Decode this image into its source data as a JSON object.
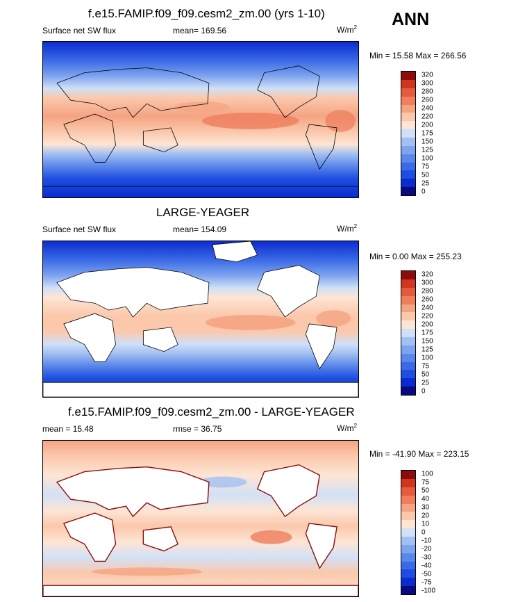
{
  "season": "ANN",
  "panels": [
    {
      "title": "f.e15.FAMIP.f09_f09.cesm2_zm.00 (yrs 1-10)",
      "left_label": "Surface net SW flux",
      "center_label": "mean= 169.56",
      "units": "W/m",
      "units_exp": "2",
      "minmax": "Min =  15.58 Max = 266.56",
      "colorbar_labels": [
        "0",
        "25",
        "50",
        "75",
        "100",
        "125",
        "150",
        "175",
        "200",
        "220",
        "240",
        "260",
        "280",
        "300",
        "320"
      ],
      "mask_land": false
    },
    {
      "title": "LARGE-YEAGER",
      "left_label": "Surface net SW flux",
      "center_label": "mean= 154.09",
      "units": "W/m",
      "units_exp": "2",
      "minmax": "Min =   0.00 Max = 255.23",
      "colorbar_labels": [
        "0",
        "25",
        "50",
        "75",
        "100",
        "125",
        "150",
        "175",
        "200",
        "220",
        "240",
        "260",
        "280",
        "300",
        "320"
      ],
      "mask_land": true
    },
    {
      "title": "f.e15.FAMIP.f09_f09.cesm2_zm.00 - LARGE-YEAGER",
      "left_label": "mean =  15.48",
      "center_label": "rmse =  36.75",
      "units": "W/m",
      "units_exp": "2",
      "minmax": "Min = -41.90 Max = 223.15",
      "colorbar_labels": [
        "-100",
        "-75",
        "-50",
        "-40",
        "-30",
        "-20",
        "-10",
        "0",
        "10",
        "20",
        "30",
        "40",
        "50",
        "75",
        "100"
      ],
      "mask_land": true
    }
  ],
  "colors": {
    "abs_scale": [
      "#0a0a80",
      "#0b2bd0",
      "#1e4de0",
      "#3a6ae6",
      "#5a87ea",
      "#7ea3ef",
      "#a3c0f3",
      "#cfe0f8",
      "#fde5d4",
      "#fbc8ac",
      "#f5a482",
      "#ee7e5c",
      "#e45a3c",
      "#d0361f",
      "#8c0b0b"
    ],
    "diff_scale": [
      "#0a0a80",
      "#0b2bd0",
      "#1e4de0",
      "#3a6ae6",
      "#5a87ea",
      "#7ea3ef",
      "#a3c0f3",
      "#d2e1f7",
      "#fde5d4",
      "#fbc8ac",
      "#f5a482",
      "#ee7e5c",
      "#e45a3c",
      "#d0361f",
      "#8c0b0b"
    ]
  }
}
